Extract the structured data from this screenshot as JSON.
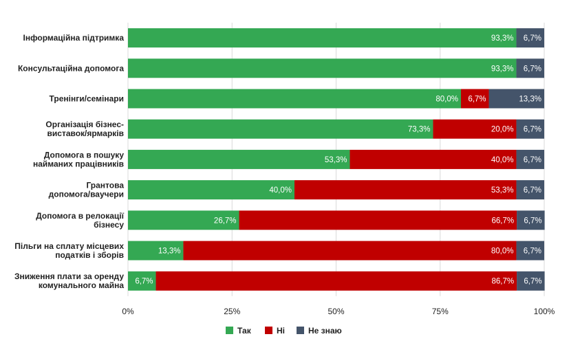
{
  "chart_data": {
    "type": "bar",
    "orientation": "horizontal",
    "stacked": "percent",
    "categories": [
      [
        "Інформаційна підтримка"
      ],
      [
        "Консультаційна допомога"
      ],
      [
        "Тренінги/семінари"
      ],
      [
        "Організація бізнес-",
        "виставок/ярмарків"
      ],
      [
        "Допомога в пошуку",
        "найманих працівників"
      ],
      [
        "Грантова",
        "допомога/ваучери"
      ],
      [
        "Допомога в релокації",
        "бізнесу"
      ],
      [
        "Пільги на сплату місцевих",
        "податків і зборів"
      ],
      [
        "Зниження плати за оренду",
        "комунального майна"
      ]
    ],
    "series": [
      {
        "name": "Так",
        "color": "#34a853",
        "values": [
          93.3,
          93.3,
          80.0,
          73.3,
          53.3,
          40.0,
          26.7,
          13.3,
          6.7
        ],
        "labels": [
          "93,3%",
          "93,3%",
          "80,0%",
          "73,3%",
          "53,3%",
          "40,0%",
          "26,7%",
          "13,3%",
          "6,7%"
        ]
      },
      {
        "name": "Ні",
        "color": "#c00000",
        "values": [
          0,
          0,
          6.7,
          20.0,
          40.0,
          53.3,
          66.7,
          80.0,
          86.7
        ],
        "labels": [
          "",
          "",
          "6,7%",
          "20,0%",
          "40,0%",
          "53,3%",
          "66,7%",
          "80,0%",
          "86,7%"
        ]
      },
      {
        "name": "Не знаю",
        "color": "#44546a",
        "values": [
          6.7,
          6.7,
          13.3,
          6.7,
          6.7,
          6.7,
          6.7,
          6.7,
          6.7
        ],
        "labels": [
          "6,7%",
          "6,7%",
          "13,3%",
          "6,7%",
          "6,7%",
          "6,7%",
          "6,7%",
          "6,7%",
          "6,7%"
        ]
      }
    ],
    "x_ticks": [
      "0%",
      "25%",
      "50%",
      "75%",
      "100%"
    ],
    "xlim": [
      0,
      100
    ],
    "grid": true,
    "legend": "bottom"
  }
}
